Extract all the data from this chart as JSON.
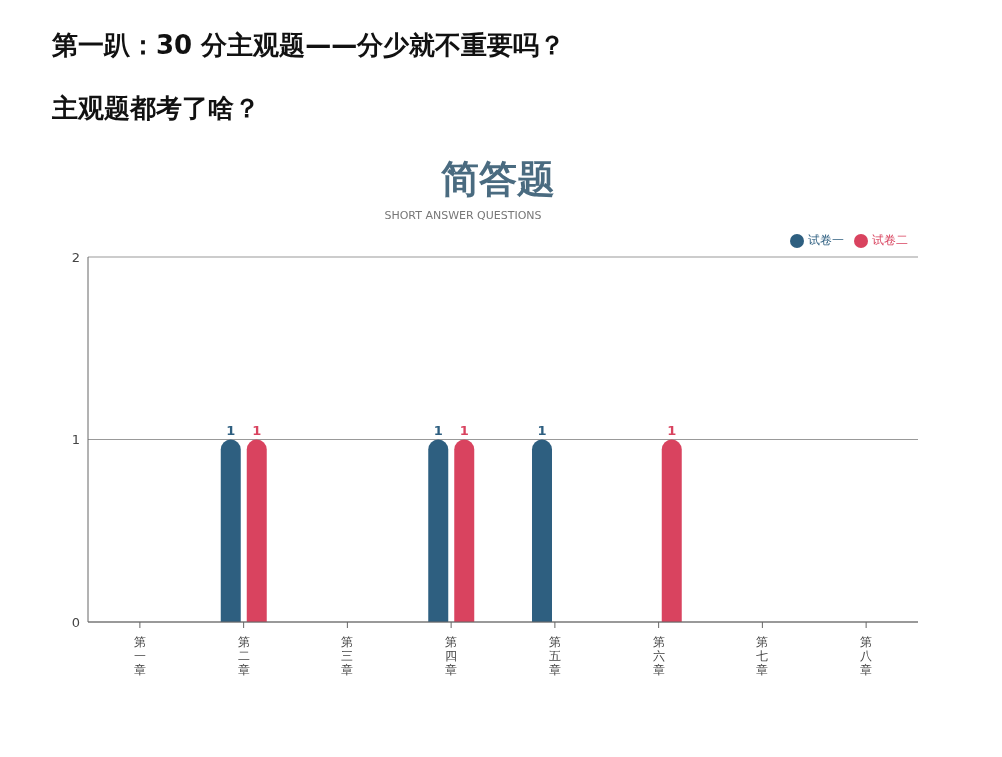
{
  "chart_data": {
    "type": "bar",
    "title": "简答题",
    "subtitle": "SHORT ANSWER QUESTIONS",
    "annotations": [
      "第一趴：30 分主观题——分少就不重要吗？",
      "主观题都考了啥？"
    ],
    "categories": [
      "第一章",
      "第二章",
      "第三章",
      "第四章",
      "第五章",
      "第六章",
      "第七章",
      "第八章"
    ],
    "series": [
      {
        "name": "试卷一",
        "color": "#2e5f80",
        "values": [
          0,
          1,
          0,
          1,
          1,
          0,
          0,
          0
        ],
        "value_labels": [
          null,
          "1",
          null,
          "1",
          "1",
          null,
          null,
          null
        ]
      },
      {
        "name": "试卷二",
        "color": "#d9435f",
        "values": [
          0,
          1,
          0,
          1,
          0,
          1,
          0,
          0
        ],
        "value_labels": [
          null,
          "1",
          null,
          "1",
          null,
          "1",
          null,
          null
        ]
      }
    ],
    "ylim": [
      0,
      2
    ],
    "yticks": [
      0,
      1,
      2
    ],
    "grid": "y",
    "legend": "top right"
  }
}
